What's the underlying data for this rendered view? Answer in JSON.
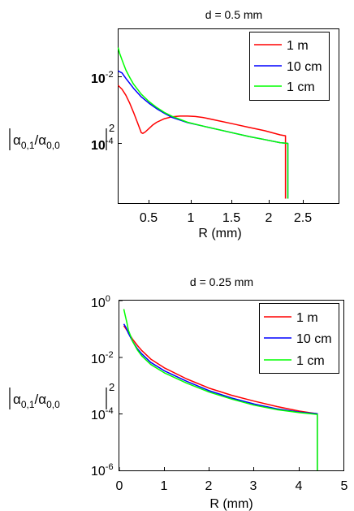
{
  "charts": [
    {
      "title": "d = 0.5 mm",
      "xlabel": "R (mm)",
      "ylabel_parts": {
        "alpha": "α",
        "num_sub": "0,1",
        "den_sub": "0,0",
        "exp": "2"
      },
      "xticks": [
        "0.5",
        "1",
        "1.5",
        "2",
        "2.5"
      ],
      "yticks": [
        {
          "base": "10",
          "exp": "-2"
        },
        {
          "base": "10",
          "exp": "-4"
        }
      ],
      "legend": [
        "1 m",
        "10 cm",
        "1 cm"
      ]
    },
    {
      "title": "d = 0.25 mm",
      "xlabel": "R (mm)",
      "ylabel_parts": {
        "alpha": "α",
        "num_sub": "0,1",
        "den_sub": "0,0",
        "exp": "2"
      },
      "xticks": [
        "0",
        "1",
        "2",
        "3",
        "4",
        "5"
      ],
      "yticks": [
        {
          "base": "10",
          "exp": "0"
        },
        {
          "base": "10",
          "exp": "-2"
        },
        {
          "base": "10",
          "exp": "-4"
        },
        {
          "base": "10",
          "exp": "-6"
        }
      ],
      "legend": [
        "1 m",
        "10 cm",
        "1 cm"
      ]
    }
  ],
  "chart_data": [
    {
      "type": "line",
      "title": "d = 0.5 mm",
      "xlabel": "R (mm)",
      "ylabel": "|α0,1/α0,0|^2",
      "xlim": [
        0,
        3
      ],
      "ylim": [
        2.2e-06,
        0.25
      ],
      "yscale": "log",
      "grid": false,
      "legend_position": "top-right",
      "colors": {
        "1 m": "#ff0000",
        "10 cm": "#0000ff",
        "1 cm": "#00ff00"
      },
      "series": [
        {
          "name": "1 m",
          "x": [
            0.1,
            0.15,
            0.2,
            0.25,
            0.3,
            0.35,
            0.4,
            0.42,
            0.45,
            0.5,
            0.55,
            0.6,
            0.7,
            0.8,
            0.9,
            1.0,
            1.1,
            1.2,
            1.4,
            1.6,
            1.8,
            2.0,
            2.2,
            2.27,
            2.27,
            2.27
          ],
          "y": [
            0.0055,
            0.0042,
            0.0028,
            0.0016,
            0.00085,
            0.00042,
            0.00021,
            0.0002,
            0.00022,
            0.00028,
            0.00036,
            0.00043,
            0.00055,
            0.00063,
            0.00066,
            0.00066,
            0.00064,
            0.0006,
            0.00048,
            0.00038,
            0.0003,
            0.00024,
            0.00018,
            0.00017,
            1e-05,
            2.2e-06
          ]
        },
        {
          "name": "10 cm",
          "x": [
            0.1,
            0.15,
            0.2,
            0.3,
            0.4,
            0.5,
            0.6,
            0.7,
            0.8,
            1.0,
            1.2,
            1.5,
            1.8,
            2.0,
            2.2,
            2.3,
            2.3
          ],
          "y": [
            0.015,
            0.013,
            0.009,
            0.0045,
            0.0025,
            0.0016,
            0.0011,
            0.0008,
            0.0006,
            0.00042,
            0.00033,
            0.00023,
            0.00016,
            0.00013,
            0.000105,
            0.0001,
            2.2e-06
          ]
        },
        {
          "name": "1 cm",
          "x": [
            0.1,
            0.12,
            0.15,
            0.2,
            0.25,
            0.3,
            0.4,
            0.5,
            0.6,
            0.7,
            0.8,
            1.0,
            1.2,
            1.5,
            1.8,
            2.0,
            2.2,
            2.3,
            2.3
          ],
          "y": [
            0.075,
            0.05,
            0.032,
            0.016,
            0.0095,
            0.006,
            0.003,
            0.0018,
            0.0012,
            0.00085,
            0.00065,
            0.00043,
            0.00033,
            0.00023,
            0.00016,
            0.00013,
            0.000105,
            0.0001,
            2.2e-06
          ]
        }
      ]
    },
    {
      "type": "line",
      "title": "d = 0.25 mm",
      "xlabel": "R (mm)",
      "ylabel": "|α0,1/α0,0|^2",
      "xlim": [
        0,
        5
      ],
      "ylim": [
        1e-06,
        1
      ],
      "yscale": "log",
      "grid": false,
      "legend_position": "top-right",
      "colors": {
        "1 m": "#ff0000",
        "10 cm": "#0000ff",
        "1 cm": "#00ff00"
      },
      "series": [
        {
          "name": "1 m",
          "x": [
            0.1,
            0.2,
            0.3,
            0.4,
            0.5,
            0.7,
            1.0,
            1.5,
            2.0,
            2.5,
            3.0,
            3.5,
            4.0,
            4.4,
            4.4,
            4.4
          ],
          "y": [
            0.13,
            0.075,
            0.042,
            0.026,
            0.017,
            0.0085,
            0.0042,
            0.0017,
            0.0008,
            0.00045,
            0.00028,
            0.00018,
            0.000125,
            0.0001,
            2e-06,
            1e-06
          ]
        },
        {
          "name": "10 cm",
          "x": [
            0.1,
            0.15,
            0.2,
            0.3,
            0.4,
            0.5,
            0.7,
            1.0,
            1.5,
            2.0,
            2.5,
            3.0,
            3.5,
            4.0,
            4.4,
            4.4
          ],
          "y": [
            0.15,
            0.11,
            0.07,
            0.035,
            0.02,
            0.013,
            0.0065,
            0.0033,
            0.0014,
            0.00065,
            0.00036,
            0.00022,
            0.00015,
            0.000115,
            0.0001,
            1e-06
          ]
        },
        {
          "name": "1 cm",
          "x": [
            0.1,
            0.13,
            0.17,
            0.2,
            0.3,
            0.4,
            0.5,
            0.7,
            1.0,
            1.5,
            2.0,
            2.5,
            3.0,
            3.5,
            4.0,
            4.4,
            4.4
          ],
          "y": [
            0.5,
            0.3,
            0.16,
            0.09,
            0.035,
            0.018,
            0.011,
            0.0055,
            0.0028,
            0.0012,
            0.00058,
            0.00033,
            0.0002,
            0.00014,
            0.00011,
            9.5e-05,
            1e-06
          ]
        }
      ]
    }
  ]
}
